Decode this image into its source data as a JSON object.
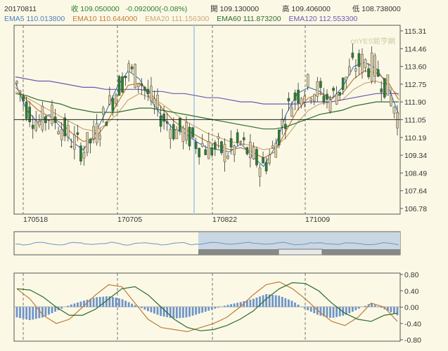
{
  "header": {
    "date": "20170811",
    "close": "收 109.050000",
    "change": "-0.092000(-0.08%)",
    "open": "開 109.130000",
    "high": "高 109.406000",
    "low": "低 108.738000"
  },
  "ema": {
    "ema5": "EMA5 110.013800",
    "ema10": "EMA10 110.644000",
    "ema20": "EMA20 111.156300",
    "ema60": "EMA60 111.873200",
    "ema120": "EMA120 112.553300"
  },
  "watermark": "cnYES鉅亨網",
  "colors": {
    "background": "#fbf9e6",
    "up": "#d9c8a0",
    "down": "#2e7d32",
    "ema5": "#4b7fc0",
    "ema10": "#c07a36",
    "ema20": "#c9a878",
    "ema60": "#2e6b2e",
    "ema120": "#6b58b2",
    "macd_bar": "#6e94c8",
    "navigator_fill": "#c9d7e3"
  },
  "chart_data": [
    {
      "type": "candlestick",
      "x_tick_labels": [
        "170518",
        "170705",
        "170822",
        "171009"
      ],
      "y_tick_labels": [
        "115.31",
        "114.46",
        "113.60",
        "112.75",
        "111.90",
        "111.05",
        "110.19",
        "109.34",
        "108.49",
        "107.64",
        "106.78"
      ],
      "ylim": [
        106.78,
        115.31
      ],
      "reference_line": 111.05,
      "series": [
        {
          "name": "EMA5",
          "values": [
            112.8,
            111.5,
            110.9,
            111.3,
            110.7,
            110.0,
            109.6,
            110.3,
            111.4,
            112.6,
            113.4,
            113.0,
            112.0,
            111.2,
            110.6,
            110.4,
            110.0,
            109.7,
            109.6,
            109.5,
            109.9,
            109.3,
            108.8,
            109.7,
            111.3,
            112.3,
            112.6,
            112.4,
            112.0,
            112.6,
            113.6,
            113.8,
            113.5,
            112.7,
            111.3
          ]
        },
        {
          "name": "EMA10",
          "values": [
            112.6,
            112.0,
            111.5,
            111.2,
            110.9,
            110.4,
            110.0,
            110.1,
            110.8,
            111.8,
            112.7,
            112.8,
            112.3,
            111.6,
            111.0,
            110.6,
            110.3,
            110.0,
            109.8,
            109.6,
            109.7,
            109.5,
            109.2,
            109.5,
            110.5,
            111.5,
            112.1,
            112.3,
            112.1,
            112.3,
            113.0,
            113.4,
            113.3,
            112.9,
            112.0
          ]
        },
        {
          "name": "EMA20",
          "values": [
            112.4,
            112.1,
            111.8,
            111.5,
            111.2,
            110.9,
            110.6,
            110.5,
            110.8,
            111.3,
            112.0,
            112.3,
            112.1,
            111.8,
            111.4,
            111.0,
            110.7,
            110.4,
            110.2,
            110.0,
            109.9,
            109.8,
            109.6,
            109.7,
            110.2,
            110.9,
            111.5,
            111.8,
            111.9,
            112.0,
            112.5,
            112.8,
            112.9,
            112.7,
            112.2
          ]
        },
        {
          "name": "EMA60",
          "values": [
            112.3,
            112.2,
            112.0,
            111.9,
            111.8,
            111.6,
            111.5,
            111.4,
            111.4,
            111.4,
            111.5,
            111.6,
            111.6,
            111.5,
            111.4,
            111.3,
            111.2,
            111.1,
            111.0,
            110.9,
            110.8,
            110.7,
            110.6,
            110.6,
            110.7,
            110.9,
            111.1,
            111.3,
            111.4,
            111.5,
            111.7,
            111.8,
            111.9,
            111.9,
            111.9
          ]
        },
        {
          "name": "EMA120",
          "values": [
            113.1,
            113.0,
            112.9,
            112.9,
            112.8,
            112.7,
            112.6,
            112.6,
            112.5,
            112.5,
            112.5,
            112.5,
            112.4,
            112.4,
            112.3,
            112.3,
            112.2,
            112.1,
            112.1,
            112.0,
            111.9,
            111.9,
            111.8,
            111.8,
            111.8,
            111.8,
            111.9,
            111.9,
            111.9,
            112.0,
            112.1,
            112.2,
            112.3,
            112.3,
            112.3
          ]
        }
      ]
    },
    {
      "type": "bar",
      "y_tick_labels": [
        "0.80",
        "0.40",
        "0.00",
        "-0.40",
        "-0.80"
      ],
      "ylim": [
        -0.8,
        0.8
      ],
      "series": [
        {
          "name": "histogram",
          "values": [
            -0.25,
            -0.32,
            -0.25,
            -0.1,
            0.05,
            0.15,
            0.24,
            0.27,
            0.2,
            0.05,
            -0.1,
            -0.22,
            -0.28,
            -0.25,
            -0.15,
            -0.05,
            0.05,
            0.12,
            0.2,
            0.32,
            0.28,
            0.15,
            -0.05,
            -0.2,
            -0.27,
            -0.2,
            -0.05,
            0.1,
            -0.05,
            -0.2
          ]
        },
        {
          "name": "line1",
          "values": [
            0.45,
            0.2,
            -0.2,
            -0.4,
            -0.3,
            0.0,
            0.3,
            0.55,
            0.5,
            0.1,
            -0.3,
            -0.5,
            -0.55,
            -0.6,
            -0.5,
            -0.4,
            -0.25,
            0.0,
            0.3,
            0.55,
            0.62,
            0.45,
            0.2,
            -0.1,
            -0.35,
            -0.45,
            -0.25,
            0.1,
            0.0,
            -0.35
          ]
        },
        {
          "name": "line2",
          "values": [
            0.45,
            0.42,
            0.25,
            0.0,
            -0.2,
            -0.2,
            -0.05,
            0.2,
            0.45,
            0.5,
            0.3,
            0.0,
            -0.3,
            -0.5,
            -0.58,
            -0.55,
            -0.45,
            -0.3,
            -0.1,
            0.2,
            0.45,
            0.6,
            0.58,
            0.4,
            0.1,
            -0.15,
            -0.3,
            -0.35,
            -0.2,
            -0.15
          ]
        }
      ]
    }
  ]
}
